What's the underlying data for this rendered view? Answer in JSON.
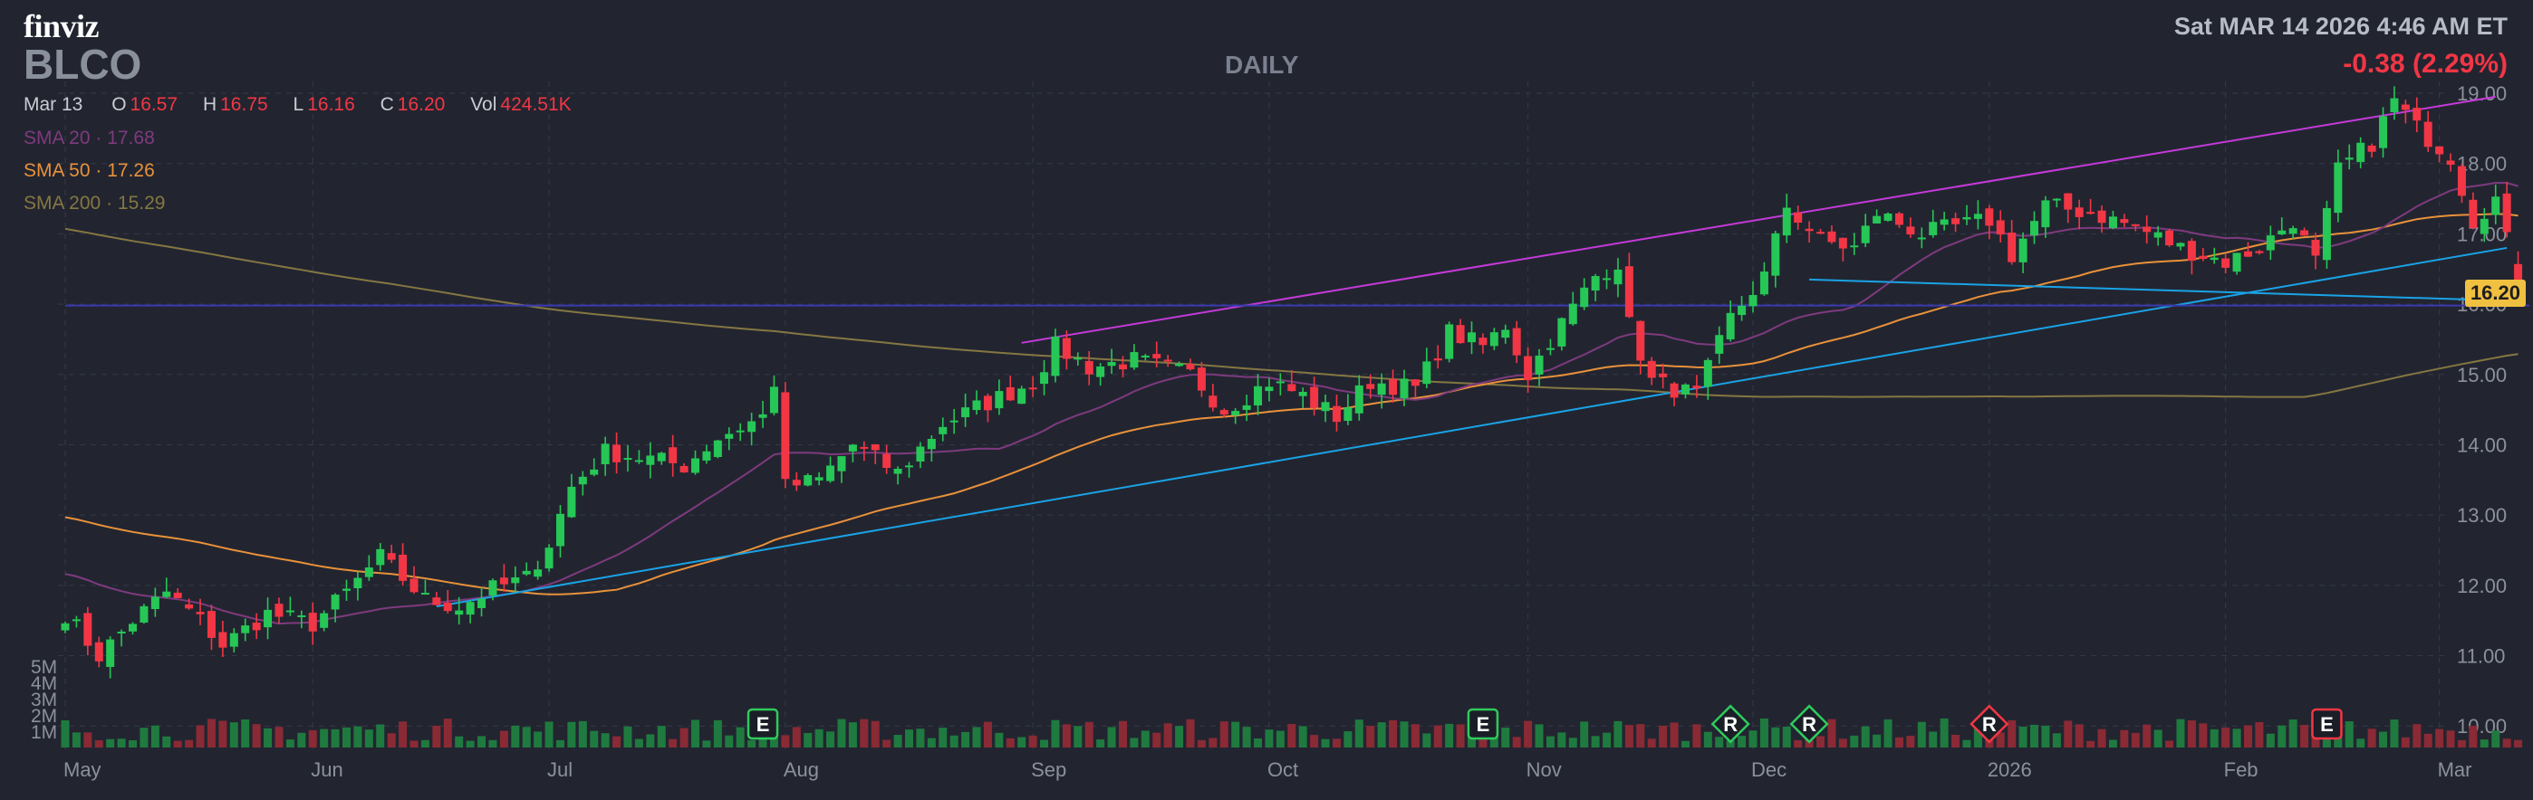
{
  "header": {
    "logo": "finviz",
    "ticker": "BLCO",
    "period": "DAILY",
    "datetime": "Sat MAR 14 2026 4:46 AM ET",
    "change": "-0.38 (2.29%)",
    "ohlc": {
      "date": "Mar 13",
      "o_label": "O",
      "o": "16.57",
      "h_label": "H",
      "h": "16.75",
      "l_label": "L",
      "l": "16.16",
      "c_label": "C",
      "c": "16.20",
      "vol_label": "Vol",
      "vol": "424.51K"
    },
    "sma": [
      {
        "label": "SMA 20",
        "sep": "·",
        "value": "17.68"
      },
      {
        "label": "SMA 50",
        "sep": "·",
        "value": "17.26"
      },
      {
        "label": "SMA 200",
        "sep": "·",
        "value": "15.29"
      }
    ],
    "last_price_box": "16.20"
  },
  "chart_data": {
    "type": "candlestick",
    "ylim": [
      9.9,
      19.0
    ],
    "y_ticks": [
      "19.00",
      "18.00",
      "17.00",
      "16.00",
      "15.00",
      "14.00",
      "13.00",
      "12.00",
      "11.00",
      "10.00"
    ],
    "y_tick_values": [
      19,
      18,
      17,
      16,
      15,
      14,
      13,
      12,
      11,
      10
    ],
    "volume_ticks": [
      "5M",
      "4M",
      "3M",
      "2M",
      "1M"
    ],
    "volume_tick_values": [
      5,
      4,
      3,
      2,
      1
    ],
    "x_labels": [
      {
        "label": "May",
        "index": 0
      },
      {
        "label": "Jun",
        "index": 22
      },
      {
        "label": "Jul",
        "index": 43
      },
      {
        "label": "Aug",
        "index": 64
      },
      {
        "label": "Sep",
        "index": 86
      },
      {
        "label": "Oct",
        "index": 107
      },
      {
        "label": "Nov",
        "index": 130
      },
      {
        "label": "Dec",
        "index": 150
      },
      {
        "label": "2026",
        "index": 171
      },
      {
        "label": "Feb",
        "index": 192
      },
      {
        "label": "Mar",
        "index": 211
      }
    ],
    "anchors": [
      [
        0,
        11.6
      ],
      [
        3,
        11.0
      ],
      [
        6,
        11.5
      ],
      [
        9,
        11.9
      ],
      [
        12,
        11.5
      ],
      [
        14,
        11.15
      ],
      [
        18,
        11.6
      ],
      [
        22,
        11.45
      ],
      [
        25,
        11.9
      ],
      [
        28,
        12.4
      ],
      [
        32,
        11.8
      ],
      [
        35,
        11.7
      ],
      [
        38,
        11.95
      ],
      [
        41,
        12.1
      ],
      [
        43,
        12.6
      ],
      [
        45,
        13.4
      ],
      [
        48,
        13.9
      ],
      [
        52,
        13.8
      ],
      [
        55,
        13.7
      ],
      [
        58,
        14.1
      ],
      [
        62,
        14.4
      ],
      [
        63,
        14.9
      ],
      [
        64,
        13.4
      ],
      [
        67,
        13.5
      ],
      [
        70,
        14.0
      ],
      [
        74,
        13.6
      ],
      [
        78,
        14.3
      ],
      [
        82,
        14.6
      ],
      [
        86,
        14.9
      ],
      [
        88,
        15.4
      ],
      [
        91,
        15.1
      ],
      [
        95,
        15.2
      ],
      [
        100,
        15.0
      ],
      [
        103,
        14.5
      ],
      [
        107,
        14.9
      ],
      [
        110,
        14.7
      ],
      [
        113,
        14.4
      ],
      [
        116,
        14.9
      ],
      [
        120,
        14.8
      ],
      [
        123,
        15.6
      ],
      [
        126,
        15.4
      ],
      [
        128,
        15.7
      ],
      [
        130,
        15.0
      ],
      [
        132,
        15.5
      ],
      [
        136,
        16.4
      ],
      [
        138,
        16.6
      ],
      [
        139,
        15.7
      ],
      [
        141,
        14.9
      ],
      [
        145,
        14.7
      ],
      [
        148,
        15.8
      ],
      [
        151,
        16.4
      ],
      [
        153,
        17.4
      ],
      [
        156,
        16.9
      ],
      [
        159,
        16.8
      ],
      [
        161,
        17.3
      ],
      [
        165,
        17.0
      ],
      [
        168,
        17.1
      ],
      [
        171,
        17.2
      ],
      [
        173,
        16.7
      ],
      [
        176,
        17.4
      ],
      [
        180,
        17.3
      ],
      [
        184,
        17.1
      ],
      [
        188,
        16.8
      ],
      [
        192,
        16.6
      ],
      [
        195,
        16.8
      ],
      [
        198,
        17.2
      ],
      [
        200,
        16.6
      ],
      [
        202,
        17.9
      ],
      [
        205,
        18.3
      ],
      [
        207,
        18.9
      ],
      [
        209,
        18.5
      ],
      [
        212,
        18.1
      ],
      [
        214,
        17.2
      ],
      [
        216,
        17.5
      ],
      [
        217,
        16.9
      ],
      [
        218,
        16.2
      ]
    ],
    "last_candle": {
      "date": "Mar 13",
      "open": 16.57,
      "high": 16.75,
      "low": 16.16,
      "close": 16.2
    },
    "sma20_last": 17.68,
    "sma50_last": 17.26,
    "sma200_last": 15.29,
    "sma200_initial": 17.1,
    "trendlines": [
      {
        "name": "upper-channel",
        "color": "#c43ad8",
        "from": [
          85,
          15.45
        ],
        "to": [
          216,
          18.95
        ]
      },
      {
        "name": "lower-channel",
        "color": "#1aa3e6",
        "from": [
          33,
          11.7
        ],
        "to": [
          217,
          16.8
        ]
      },
      {
        "name": "support",
        "color": "#1aa3e6",
        "from": [
          155,
          16.35
        ],
        "to": [
          217,
          16.05
        ]
      },
      {
        "name": "horizontal",
        "color": "#3a3ab0",
        "from": [
          0,
          15.98
        ],
        "to": [
          219,
          15.98
        ]
      }
    ],
    "events": [
      {
        "label": "E",
        "index": 62,
        "color": "#2ecc5c",
        "shape": "square"
      },
      {
        "label": "E",
        "index": 126,
        "color": "#2ecc5c",
        "shape": "square"
      },
      {
        "label": "R",
        "index": 148,
        "color": "#2ecc5c",
        "shape": "diamond"
      },
      {
        "label": "R",
        "index": 155,
        "color": "#2ecc5c",
        "shape": "diamond"
      },
      {
        "label": "R",
        "index": 171,
        "color": "#f23645",
        "shape": "diamond"
      },
      {
        "label": "E",
        "index": 201,
        "color": "#f23645",
        "shape": "square"
      }
    ],
    "colors": {
      "up": "#26c756",
      "down": "#f23645",
      "sma20": "#7e3a7e",
      "sma50": "#e9913a",
      "sma200": "#857742",
      "grid": "#353947",
      "axis_text": "#8c909b"
    }
  }
}
